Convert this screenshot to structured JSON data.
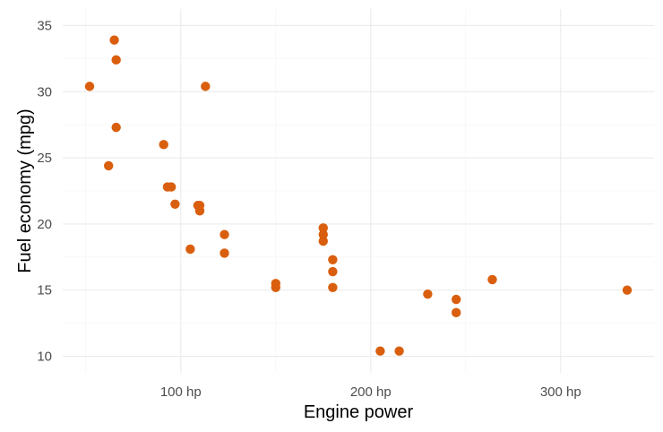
{
  "chart_data": {
    "type": "scatter",
    "xlabel": "Engine power",
    "ylabel": "Fuel economy (mpg)",
    "x_tick_suffix": " hp",
    "xlim": [
      52,
      335
    ],
    "ylim": [
      10,
      35
    ],
    "x_ticks": [
      100,
      200,
      300
    ],
    "x_tick_labels": [
      "100 hp",
      "200 hp",
      "300 hp"
    ],
    "y_ticks": [
      10,
      15,
      20,
      25,
      30,
      35
    ],
    "y_tick_labels": [
      "10",
      "15",
      "20",
      "25",
      "30",
      "35"
    ],
    "grid": true,
    "point_color": "#d95f0e",
    "series": [
      {
        "points": [
          {
            "x": 110,
            "y": 21.0
          },
          {
            "x": 110,
            "y": 21.0
          },
          {
            "x": 93,
            "y": 22.8
          },
          {
            "x": 110,
            "y": 21.4
          },
          {
            "x": 175,
            "y": 18.7
          },
          {
            "x": 105,
            "y": 18.1
          },
          {
            "x": 245,
            "y": 14.3
          },
          {
            "x": 62,
            "y": 24.4
          },
          {
            "x": 95,
            "y": 22.8
          },
          {
            "x": 123,
            "y": 19.2
          },
          {
            "x": 123,
            "y": 17.8
          },
          {
            "x": 180,
            "y": 16.4
          },
          {
            "x": 180,
            "y": 17.3
          },
          {
            "x": 180,
            "y": 15.2
          },
          {
            "x": 205,
            "y": 10.4
          },
          {
            "x": 215,
            "y": 10.4
          },
          {
            "x": 230,
            "y": 14.7
          },
          {
            "x": 66,
            "y": 32.4
          },
          {
            "x": 52,
            "y": 30.4
          },
          {
            "x": 65,
            "y": 33.9
          },
          {
            "x": 97,
            "y": 21.5
          },
          {
            "x": 150,
            "y": 15.5
          },
          {
            "x": 150,
            "y": 15.2
          },
          {
            "x": 245,
            "y": 13.3
          },
          {
            "x": 175,
            "y": 19.2
          },
          {
            "x": 66,
            "y": 27.3
          },
          {
            "x": 91,
            "y": 26.0
          },
          {
            "x": 113,
            "y": 30.4
          },
          {
            "x": 264,
            "y": 15.8
          },
          {
            "x": 175,
            "y": 19.7
          },
          {
            "x": 335,
            "y": 15.0
          },
          {
            "x": 109,
            "y": 21.4
          }
        ]
      }
    ]
  }
}
